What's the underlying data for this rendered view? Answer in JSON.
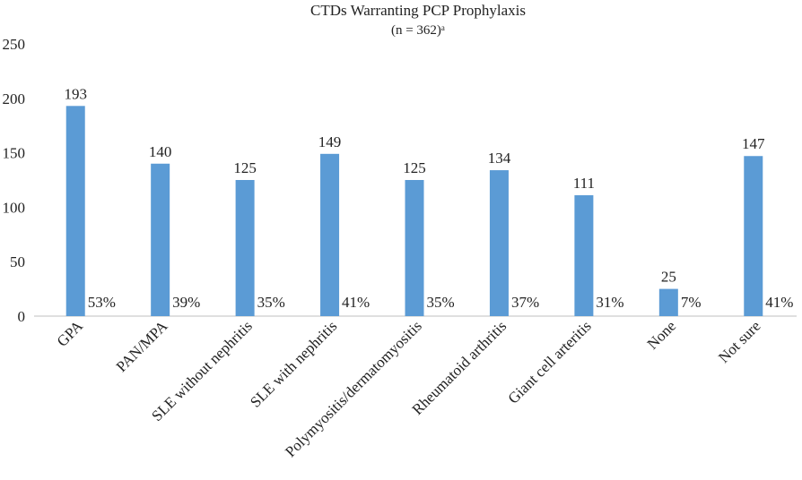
{
  "chart_data": {
    "type": "bar",
    "title": "CTDs Warranting PCP Prophylaxis",
    "subtitle": "(n = 362)ᵃ",
    "xlabel": "",
    "ylabel": "",
    "ylim": [
      0,
      250
    ],
    "yticks": [
      0,
      50,
      100,
      150,
      200,
      250
    ],
    "grid": false,
    "legend": "none",
    "categories": [
      "GPA",
      "PAN/MPA",
      "SLE without nephritis",
      "SLE with nephritis",
      "Polymyositis/dermatomyositis",
      "Rheumatoid arthritis",
      "Giant cell arteritis",
      "None",
      "Not sure"
    ],
    "values": [
      193,
      140,
      125,
      149,
      125,
      134,
      111,
      25,
      147
    ],
    "percent_labels": [
      "53%",
      "39%",
      "35%",
      "41%",
      "35%",
      "37%",
      "31%",
      "7%",
      "41%"
    ],
    "bar_color": "#5b9bd5"
  }
}
